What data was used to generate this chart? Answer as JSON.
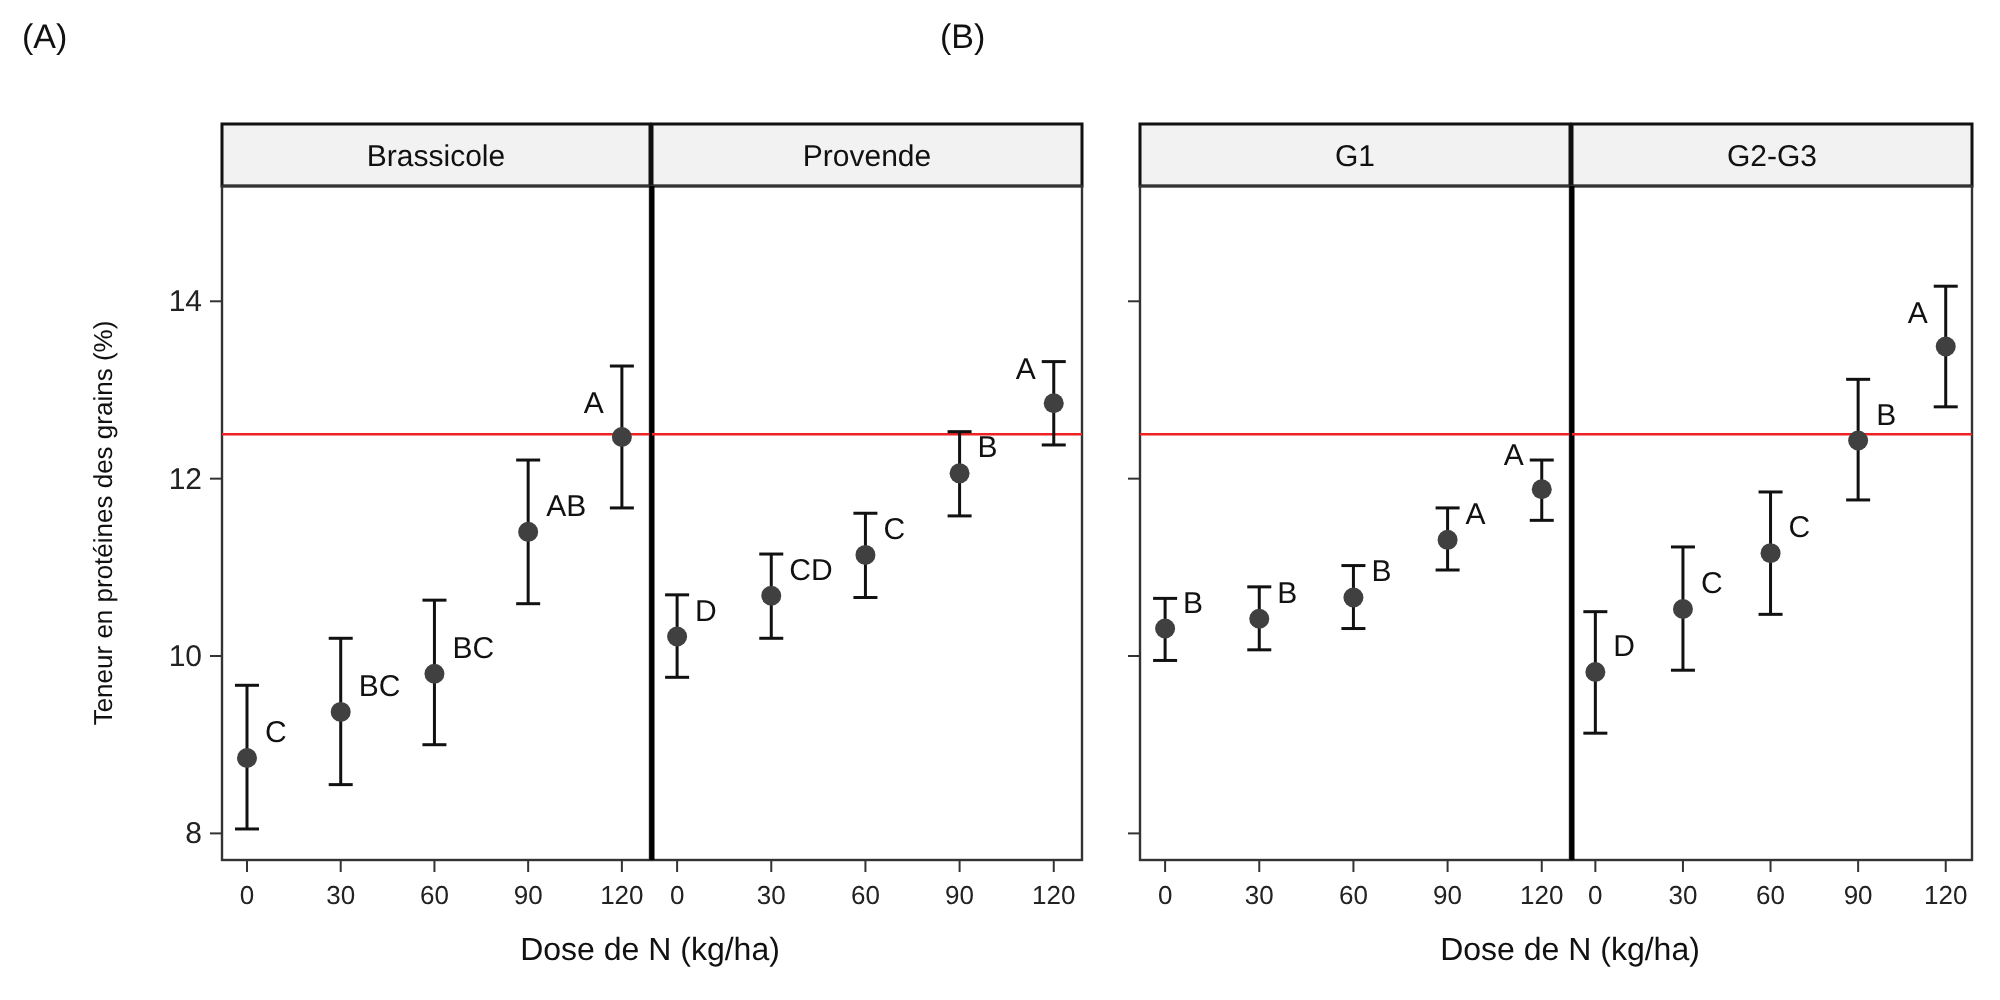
{
  "chart_data": [
    {
      "type": "scatter",
      "title": "Brassicole",
      "ylabel": "Teneur en protéines des grains (%)",
      "xlabel": "Dose de N (kg/ha)",
      "x": [
        0,
        30,
        60,
        90,
        120
      ],
      "xlim": [
        -8,
        129
      ],
      "xticks": [
        0,
        30,
        60,
        90,
        120
      ],
      "ylim": [
        7.7,
        15.3
      ],
      "yticks": [
        8,
        10,
        12,
        14
      ],
      "marker": "circle",
      "color": "#404040",
      "values": [
        8.85,
        9.37,
        9.8,
        11.4,
        12.47
      ],
      "errors": [
        [
          8.05,
          9.67
        ],
        [
          8.55,
          10.2
        ],
        [
          9.0,
          10.63
        ],
        [
          10.59,
          12.21
        ],
        [
          11.67,
          13.27
        ]
      ],
      "ref_lines": [
        {
          "axis": "y",
          "value": 12.5,
          "color": "#ee2222"
        }
      ],
      "annotations": [
        "(A)",
        {
          "text": "C",
          "x": 0,
          "y": 8.85
        },
        {
          "text": "BC",
          "x": 30,
          "y": 9.37
        },
        {
          "text": "BC",
          "x": 60,
          "y": 9.8
        },
        {
          "text": "AB",
          "x": 90,
          "y": 11.4
        },
        {
          "text": "A",
          "x": 120,
          "y": 12.47
        }
      ]
    },
    {
      "type": "scatter",
      "title": "Provende",
      "x": [
        0,
        30,
        60,
        90,
        120
      ],
      "xlim": [
        -8,
        129
      ],
      "xticks": [
        0,
        30,
        60,
        90,
        120
      ],
      "ylim": [
        7.7,
        15.3
      ],
      "tick_labels": "x",
      "marker": "circle",
      "color": "#404040",
      "values": [
        10.22,
        10.68,
        11.14,
        12.06,
        12.85
      ],
      "errors": [
        [
          9.76,
          10.69
        ],
        [
          10.2,
          11.15
        ],
        [
          10.66,
          11.61
        ],
        [
          11.58,
          12.53
        ],
        [
          12.38,
          13.32
        ]
      ],
      "ref_lines": [
        {
          "axis": "y",
          "value": 12.5,
          "color": "#ee2222"
        }
      ],
      "annotations": [
        {
          "text": "D",
          "x": 0,
          "y": 10.22
        },
        {
          "text": "CD",
          "x": 30,
          "y": 10.68
        },
        {
          "text": "C",
          "x": 60,
          "y": 11.14
        },
        {
          "text": "B",
          "x": 90,
          "y": 12.06
        },
        {
          "text": "A",
          "x": 120,
          "y": 12.85
        }
      ]
    },
    {
      "type": "scatter",
      "title": "G1",
      "xlabel": "Dose de N (kg/ha)",
      "x": [
        0,
        30,
        60,
        90,
        120
      ],
      "xlim": [
        -8,
        129
      ],
      "xticks": [
        0,
        30,
        60,
        90,
        120
      ],
      "ylim": [
        7.7,
        15.3
      ],
      "yticks": [
        {
          "value": 8,
          "label": null
        },
        {
          "value": 10,
          "label": null
        },
        {
          "value": 12,
          "label": null
        },
        {
          "value": 14,
          "label": null
        }
      ],
      "tick_labels": "x",
      "marker": "circle",
      "color": "#404040",
      "values": [
        10.31,
        10.42,
        10.66,
        11.31,
        11.88
      ],
      "errors": [
        [
          9.95,
          10.65
        ],
        [
          10.07,
          10.78
        ],
        [
          10.31,
          11.02
        ],
        [
          10.97,
          11.67
        ],
        [
          11.53,
          12.21
        ]
      ],
      "ref_lines": [
        {
          "axis": "y",
          "value": 12.5,
          "color": "#ee2222"
        }
      ],
      "annotations": [
        "(B)",
        {
          "text": "B",
          "x": 0,
          "y": 10.31
        },
        {
          "text": "B",
          "x": 30,
          "y": 10.42
        },
        {
          "text": "B",
          "x": 60,
          "y": 10.66
        },
        {
          "text": "A",
          "x": 90,
          "y": 11.31
        },
        {
          "text": "A",
          "x": 120,
          "y": 11.88
        }
      ]
    },
    {
      "type": "scatter",
      "title": "G2-G3",
      "x": [
        0,
        30,
        60,
        90,
        120
      ],
      "xlim": [
        -8,
        129
      ],
      "xticks": [
        0,
        30,
        60,
        90,
        120
      ],
      "ylim": [
        7.7,
        15.3
      ],
      "tick_labels": "x",
      "marker": "circle",
      "color": "#404040",
      "values": [
        9.82,
        10.53,
        11.16,
        12.43,
        13.49
      ],
      "errors": [
        [
          9.13,
          10.5
        ],
        [
          9.84,
          11.23
        ],
        [
          10.47,
          11.85
        ],
        [
          11.76,
          13.12
        ],
        [
          12.81,
          14.17
        ]
      ],
      "ref_lines": [
        {
          "axis": "y",
          "value": 12.5,
          "color": "#ee2222"
        }
      ],
      "annotations": [
        {
          "text": "D",
          "x": 0,
          "y": 9.82
        },
        {
          "text": "C",
          "x": 30,
          "y": 10.53
        },
        {
          "text": "C",
          "x": 60,
          "y": 11.16
        },
        {
          "text": "B",
          "x": 90,
          "y": 12.43
        },
        {
          "text": "A",
          "x": 120,
          "y": 13.49
        }
      ]
    }
  ]
}
